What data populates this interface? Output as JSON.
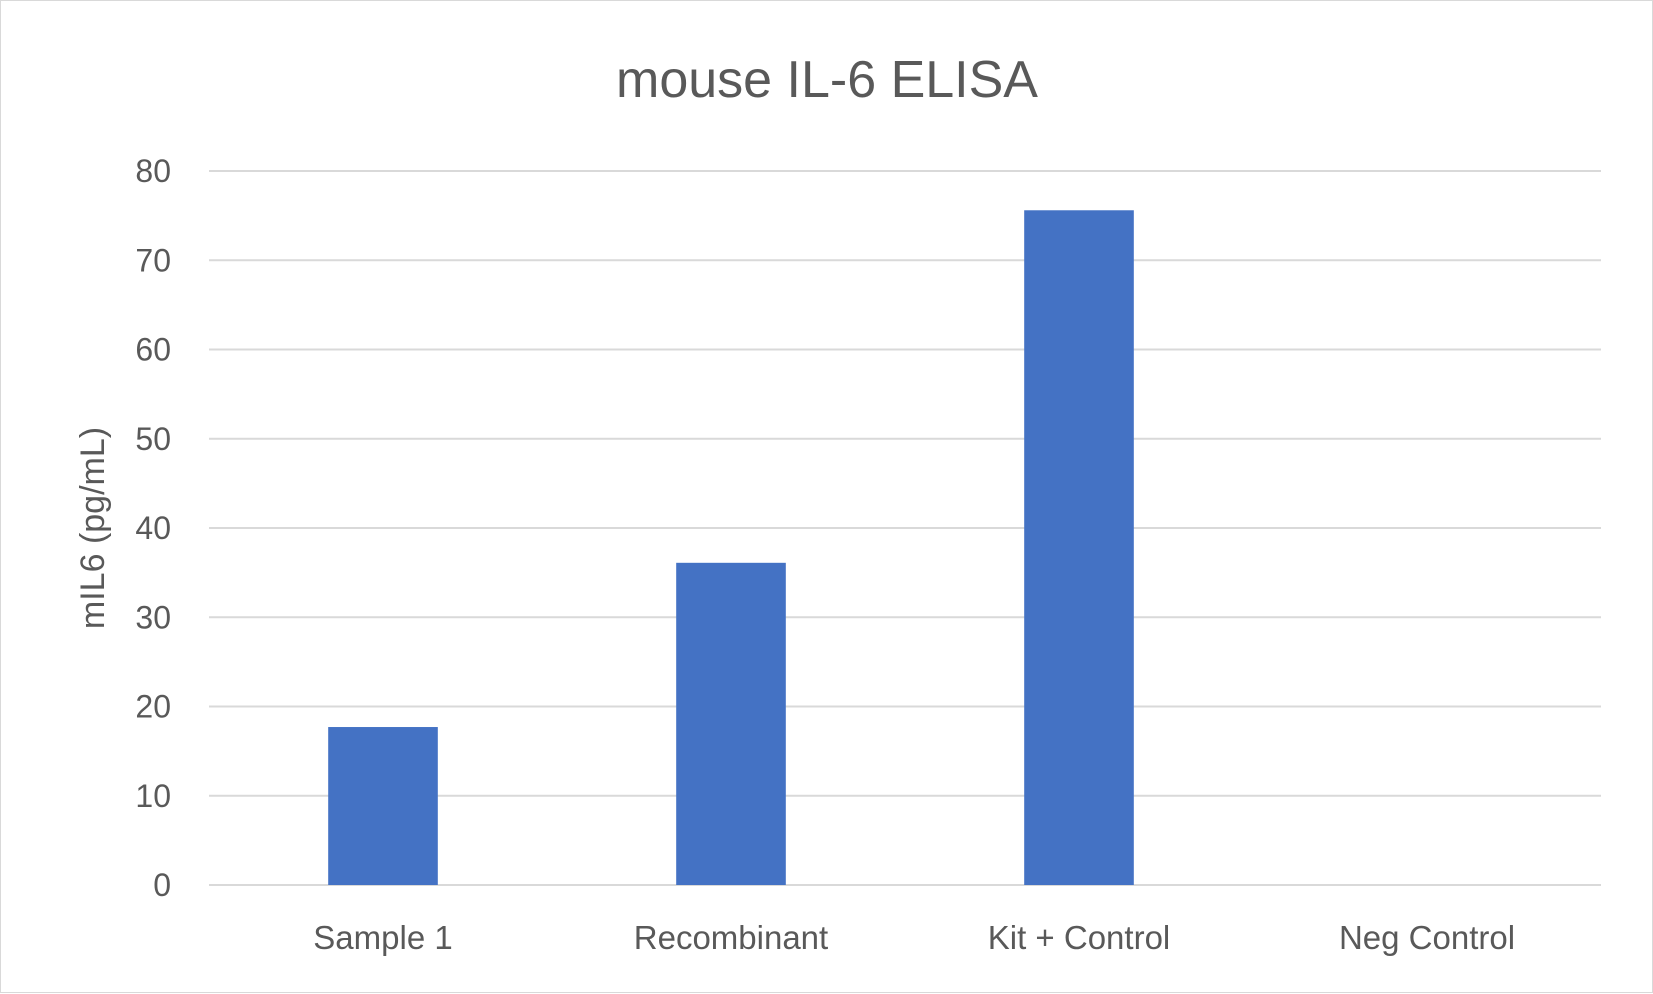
{
  "chart_data": {
    "type": "bar",
    "title": "mouse IL-6 ELISA",
    "xlabel": "",
    "ylabel": "mIL6 (pg/mL)",
    "categories": [
      "Sample 1",
      "Recombinant",
      "Kit + Control",
      "Neg Control"
    ],
    "values": [
      17.7,
      36.1,
      75.6,
      0
    ],
    "ylim": [
      0,
      80
    ],
    "yticks": [
      0,
      10,
      20,
      30,
      40,
      50,
      60,
      70,
      80
    ],
    "grid": true,
    "legend": "none",
    "bar_color": "#4472C4"
  }
}
